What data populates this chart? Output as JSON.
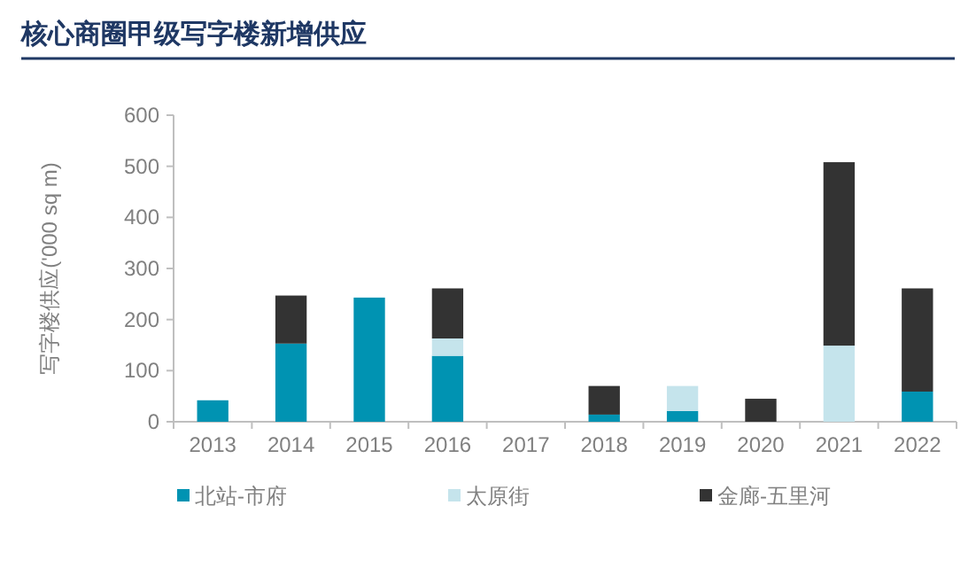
{
  "chart_data": {
    "type": "bar",
    "stacked": true,
    "title": "核心商圈甲级写字楼新增供应",
    "ylabel": "写字楼供应('000 sq m)",
    "categories": [
      "2013",
      "2014",
      "2015",
      "2016",
      "2017",
      "2018",
      "2019",
      "2020",
      "2021",
      "2022"
    ],
    "series": [
      {
        "name": "北站-市府",
        "color": "#0093b2",
        "values": [
          42,
          153,
          243,
          129,
          0,
          14,
          21,
          0,
          0,
          59
        ]
      },
      {
        "name": "太原街",
        "color": "#c5e4ec",
        "values": [
          0,
          0,
          0,
          34,
          0,
          0,
          49,
          0,
          149,
          0
        ]
      },
      {
        "name": "金廊-五里河",
        "color": "#333333",
        "values": [
          0,
          94,
          0,
          98,
          0,
          56,
          0,
          45,
          359,
          202
        ]
      }
    ],
    "ylim": [
      0,
      600
    ],
    "yticks": [
      0,
      100,
      200,
      300,
      400,
      500,
      600
    ],
    "legend": "bottom",
    "grid": false
  }
}
